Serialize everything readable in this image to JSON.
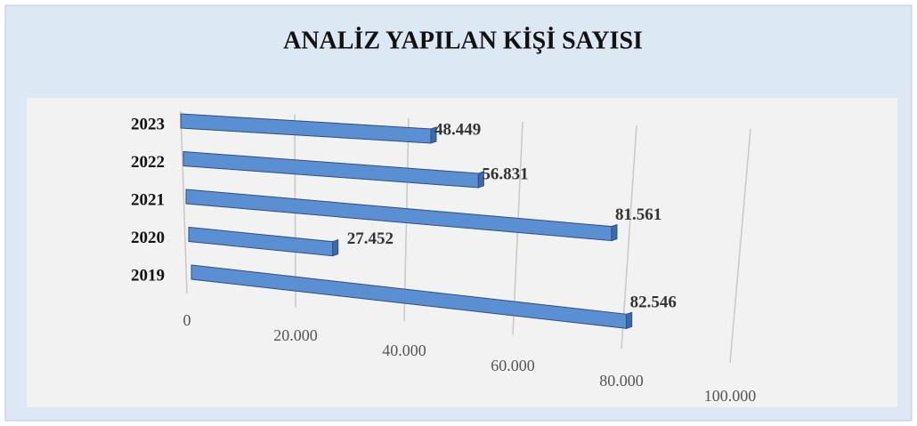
{
  "chart_data": {
    "type": "bar",
    "orientation": "horizontal",
    "title": "ANALİZ YAPILAN KİŞİ SAYISI",
    "categories": [
      "2023",
      "2022",
      "2021",
      "2020",
      "2019"
    ],
    "values": [
      48449,
      56831,
      81561,
      27452,
      82546
    ],
    "value_labels": [
      "48.449",
      "56.831",
      "81.561",
      "27.452",
      "82.546"
    ],
    "color": "#5b8fd4",
    "xlim": [
      0,
      100000
    ],
    "xticks": [
      0,
      {
        "value": 20000,
        "label": "20.000"
      },
      {
        "value": 40000,
        "label": "40.000"
      },
      {
        "value": 60000,
        "label": "60.000"
      },
      {
        "value": 80000,
        "label": "80.000"
      },
      {
        "value": 100000,
        "label": "100.000"
      }
    ],
    "grid": true
  }
}
